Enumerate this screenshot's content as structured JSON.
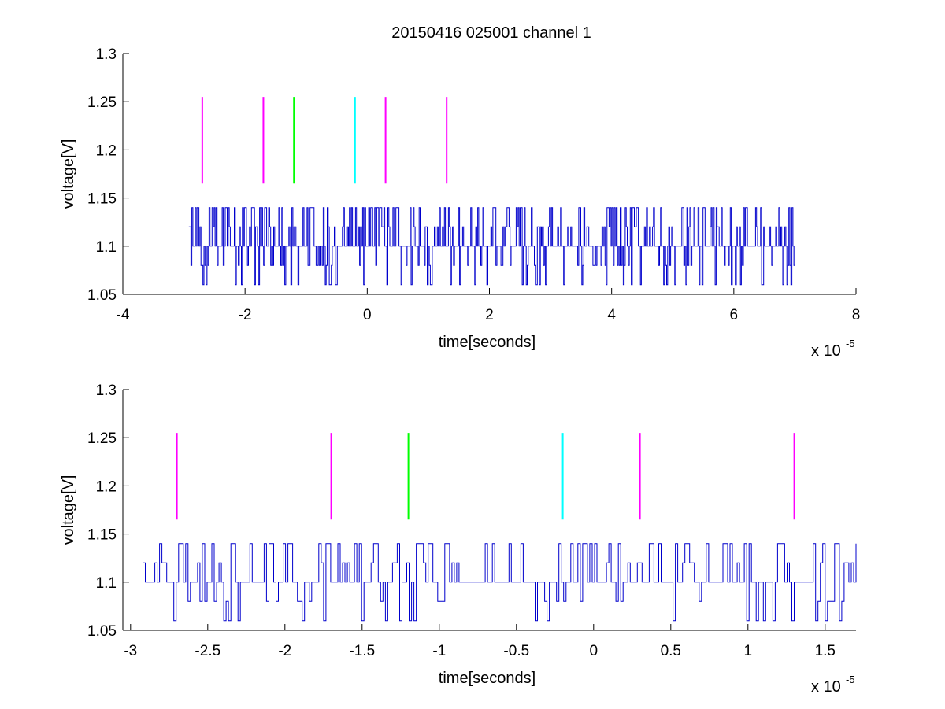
{
  "title": "20150416 025001 channel 1",
  "colors": {
    "trace": "#0000cc",
    "axes": "#000000",
    "background": "#ffffff"
  },
  "chart_data": [
    {
      "type": "line",
      "xlabel": "time[seconds]",
      "ylabel": "voltage[V]",
      "x_multiplier_text": "x 10",
      "x_multiplier_exp": "-5",
      "xlim": [
        -4,
        8
      ],
      "ylim": [
        1.05,
        1.3
      ],
      "xticks": [
        -4,
        -2,
        0,
        2,
        4,
        6,
        8
      ],
      "xtick_labels": [
        "-4",
        "-2",
        "0",
        "2",
        "4",
        "6",
        "8"
      ],
      "yticks": [
        1.05,
        1.1,
        1.15,
        1.2,
        1.25,
        1.3
      ],
      "ytick_labels": [
        "1.05",
        "1.1",
        "1.15",
        "1.2",
        "1.25",
        "1.3"
      ],
      "grid": false,
      "series": [
        {
          "x_range": [
            -2.92,
            7.0
          ],
          "levels": [
            1.06,
            1.08,
            1.1,
            1.12,
            1.14
          ],
          "baseline": 1.1,
          "approx_samples": 600
        }
      ],
      "markers": [
        {
          "x": -2.7,
          "y_range": [
            1.165,
            1.255
          ],
          "color": "#ff00ff"
        },
        {
          "x": -1.7,
          "y_range": [
            1.165,
            1.255
          ],
          "color": "#ff00ff"
        },
        {
          "x": -1.2,
          "y_range": [
            1.165,
            1.255
          ],
          "color": "#00ff00"
        },
        {
          "x": -0.2,
          "y_range": [
            1.165,
            1.255
          ],
          "color": "#00ffff"
        },
        {
          "x": 0.3,
          "y_range": [
            1.165,
            1.255
          ],
          "color": "#ff00ff"
        },
        {
          "x": 1.3,
          "y_range": [
            1.165,
            1.255
          ],
          "color": "#ff00ff"
        }
      ]
    },
    {
      "type": "line",
      "xlabel": "time[seconds]",
      "ylabel": "voltage[V]",
      "x_multiplier_text": "x 10",
      "x_multiplier_exp": "-5",
      "xlim": [
        -3.05,
        1.7
      ],
      "ylim": [
        1.05,
        1.3
      ],
      "xticks": [
        -3,
        -2.5,
        -2,
        -1.5,
        -1,
        -0.5,
        0,
        0.5,
        1,
        1.5
      ],
      "xtick_labels": [
        "-3",
        "-2.5",
        "-2",
        "-1.5",
        "-1",
        "-0.5",
        "0",
        "0.5",
        "1",
        "1.5"
      ],
      "yticks": [
        1.05,
        1.1,
        1.15,
        1.2,
        1.25,
        1.3
      ],
      "ytick_labels": [
        "1.05",
        "1.1",
        "1.15",
        "1.2",
        "1.25",
        "1.3"
      ],
      "grid": false,
      "series": [
        {
          "x_range": [
            -2.92,
            1.7
          ],
          "levels": [
            1.06,
            1.08,
            1.1,
            1.12,
            1.14
          ],
          "baseline": 1.1,
          "approx_samples": 300
        }
      ],
      "markers": [
        {
          "x": -2.7,
          "y_range": [
            1.165,
            1.255
          ],
          "color": "#ff00ff"
        },
        {
          "x": -1.7,
          "y_range": [
            1.165,
            1.255
          ],
          "color": "#ff00ff"
        },
        {
          "x": -1.2,
          "y_range": [
            1.165,
            1.255
          ],
          "color": "#00ff00"
        },
        {
          "x": -0.2,
          "y_range": [
            1.165,
            1.255
          ],
          "color": "#00ffff"
        },
        {
          "x": 0.3,
          "y_range": [
            1.165,
            1.255
          ],
          "color": "#ff00ff"
        },
        {
          "x": 1.3,
          "y_range": [
            1.165,
            1.255
          ],
          "color": "#ff00ff"
        }
      ]
    }
  ]
}
